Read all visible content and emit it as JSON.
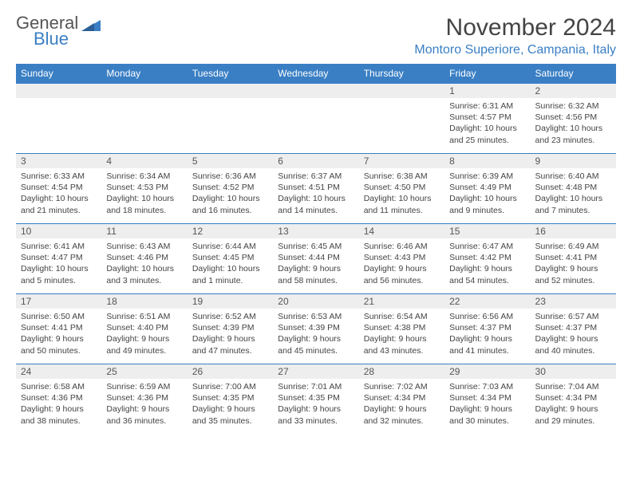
{
  "logo": {
    "general": "General",
    "blue": "Blue"
  },
  "title": "November 2024",
  "location": "Montoro Superiore, Campania, Italy",
  "colors": {
    "header_bg": "#3a7fc4",
    "accent": "#3a7fc4",
    "daynum_bg": "#eeeeee",
    "text": "#444444"
  },
  "weekdays": [
    "Sunday",
    "Monday",
    "Tuesday",
    "Wednesday",
    "Thursday",
    "Friday",
    "Saturday"
  ],
  "weeks": [
    [
      null,
      null,
      null,
      null,
      null,
      {
        "n": "1",
        "sr": "Sunrise: 6:31 AM",
        "ss": "Sunset: 4:57 PM",
        "dl": "Daylight: 10 hours and 25 minutes."
      },
      {
        "n": "2",
        "sr": "Sunrise: 6:32 AM",
        "ss": "Sunset: 4:56 PM",
        "dl": "Daylight: 10 hours and 23 minutes."
      }
    ],
    [
      {
        "n": "3",
        "sr": "Sunrise: 6:33 AM",
        "ss": "Sunset: 4:54 PM",
        "dl": "Daylight: 10 hours and 21 minutes."
      },
      {
        "n": "4",
        "sr": "Sunrise: 6:34 AM",
        "ss": "Sunset: 4:53 PM",
        "dl": "Daylight: 10 hours and 18 minutes."
      },
      {
        "n": "5",
        "sr": "Sunrise: 6:36 AM",
        "ss": "Sunset: 4:52 PM",
        "dl": "Daylight: 10 hours and 16 minutes."
      },
      {
        "n": "6",
        "sr": "Sunrise: 6:37 AM",
        "ss": "Sunset: 4:51 PM",
        "dl": "Daylight: 10 hours and 14 minutes."
      },
      {
        "n": "7",
        "sr": "Sunrise: 6:38 AM",
        "ss": "Sunset: 4:50 PM",
        "dl": "Daylight: 10 hours and 11 minutes."
      },
      {
        "n": "8",
        "sr": "Sunrise: 6:39 AM",
        "ss": "Sunset: 4:49 PM",
        "dl": "Daylight: 10 hours and 9 minutes."
      },
      {
        "n": "9",
        "sr": "Sunrise: 6:40 AM",
        "ss": "Sunset: 4:48 PM",
        "dl": "Daylight: 10 hours and 7 minutes."
      }
    ],
    [
      {
        "n": "10",
        "sr": "Sunrise: 6:41 AM",
        "ss": "Sunset: 4:47 PM",
        "dl": "Daylight: 10 hours and 5 minutes."
      },
      {
        "n": "11",
        "sr": "Sunrise: 6:43 AM",
        "ss": "Sunset: 4:46 PM",
        "dl": "Daylight: 10 hours and 3 minutes."
      },
      {
        "n": "12",
        "sr": "Sunrise: 6:44 AM",
        "ss": "Sunset: 4:45 PM",
        "dl": "Daylight: 10 hours and 1 minute."
      },
      {
        "n": "13",
        "sr": "Sunrise: 6:45 AM",
        "ss": "Sunset: 4:44 PM",
        "dl": "Daylight: 9 hours and 58 minutes."
      },
      {
        "n": "14",
        "sr": "Sunrise: 6:46 AM",
        "ss": "Sunset: 4:43 PM",
        "dl": "Daylight: 9 hours and 56 minutes."
      },
      {
        "n": "15",
        "sr": "Sunrise: 6:47 AM",
        "ss": "Sunset: 4:42 PM",
        "dl": "Daylight: 9 hours and 54 minutes."
      },
      {
        "n": "16",
        "sr": "Sunrise: 6:49 AM",
        "ss": "Sunset: 4:41 PM",
        "dl": "Daylight: 9 hours and 52 minutes."
      }
    ],
    [
      {
        "n": "17",
        "sr": "Sunrise: 6:50 AM",
        "ss": "Sunset: 4:41 PM",
        "dl": "Daylight: 9 hours and 50 minutes."
      },
      {
        "n": "18",
        "sr": "Sunrise: 6:51 AM",
        "ss": "Sunset: 4:40 PM",
        "dl": "Daylight: 9 hours and 49 minutes."
      },
      {
        "n": "19",
        "sr": "Sunrise: 6:52 AM",
        "ss": "Sunset: 4:39 PM",
        "dl": "Daylight: 9 hours and 47 minutes."
      },
      {
        "n": "20",
        "sr": "Sunrise: 6:53 AM",
        "ss": "Sunset: 4:39 PM",
        "dl": "Daylight: 9 hours and 45 minutes."
      },
      {
        "n": "21",
        "sr": "Sunrise: 6:54 AM",
        "ss": "Sunset: 4:38 PM",
        "dl": "Daylight: 9 hours and 43 minutes."
      },
      {
        "n": "22",
        "sr": "Sunrise: 6:56 AM",
        "ss": "Sunset: 4:37 PM",
        "dl": "Daylight: 9 hours and 41 minutes."
      },
      {
        "n": "23",
        "sr": "Sunrise: 6:57 AM",
        "ss": "Sunset: 4:37 PM",
        "dl": "Daylight: 9 hours and 40 minutes."
      }
    ],
    [
      {
        "n": "24",
        "sr": "Sunrise: 6:58 AM",
        "ss": "Sunset: 4:36 PM",
        "dl": "Daylight: 9 hours and 38 minutes."
      },
      {
        "n": "25",
        "sr": "Sunrise: 6:59 AM",
        "ss": "Sunset: 4:36 PM",
        "dl": "Daylight: 9 hours and 36 minutes."
      },
      {
        "n": "26",
        "sr": "Sunrise: 7:00 AM",
        "ss": "Sunset: 4:35 PM",
        "dl": "Daylight: 9 hours and 35 minutes."
      },
      {
        "n": "27",
        "sr": "Sunrise: 7:01 AM",
        "ss": "Sunset: 4:35 PM",
        "dl": "Daylight: 9 hours and 33 minutes."
      },
      {
        "n": "28",
        "sr": "Sunrise: 7:02 AM",
        "ss": "Sunset: 4:34 PM",
        "dl": "Daylight: 9 hours and 32 minutes."
      },
      {
        "n": "29",
        "sr": "Sunrise: 7:03 AM",
        "ss": "Sunset: 4:34 PM",
        "dl": "Daylight: 9 hours and 30 minutes."
      },
      {
        "n": "30",
        "sr": "Sunrise: 7:04 AM",
        "ss": "Sunset: 4:34 PM",
        "dl": "Daylight: 9 hours and 29 minutes."
      }
    ]
  ]
}
